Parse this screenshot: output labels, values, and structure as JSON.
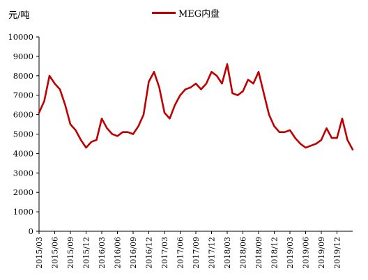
{
  "chart_data": {
    "type": "line",
    "title": "",
    "ylabel": "元/吨",
    "xlabel": "",
    "ylim": [
      0,
      10000
    ],
    "yticks": [
      0,
      1000,
      2000,
      3000,
      4000,
      5000,
      6000,
      7000,
      8000,
      9000,
      10000
    ],
    "xtick_labels": [
      "2015/03",
      "2015/06",
      "2015/09",
      "2015/12",
      "2016/03",
      "2016/06",
      "2016/09",
      "2016/12",
      "2017/03",
      "2017/06",
      "2017/09",
      "2017/12",
      "2018/03",
      "2018/06",
      "2018/09",
      "2018/12",
      "2019/03",
      "2019/06",
      "2019/09",
      "2019/12"
    ],
    "grid": false,
    "legend_position": "top-center",
    "series": [
      {
        "name": "MEG内盘",
        "color": "#c00000",
        "x": [
          "2015/03",
          "2015/04",
          "2015/05",
          "2015/06",
          "2015/07",
          "2015/08",
          "2015/09",
          "2015/10",
          "2015/11",
          "2015/12",
          "2016/01",
          "2016/02",
          "2016/03",
          "2016/04",
          "2016/05",
          "2016/06",
          "2016/07",
          "2016/08",
          "2016/09",
          "2016/10",
          "2016/11",
          "2016/12",
          "2017/01",
          "2017/02",
          "2017/03",
          "2017/04",
          "2017/05",
          "2017/06",
          "2017/07",
          "2017/08",
          "2017/09",
          "2017/10",
          "2017/11",
          "2017/12",
          "2018/01",
          "2018/02",
          "2018/03",
          "2018/04",
          "2018/05",
          "2018/06",
          "2018/07",
          "2018/08",
          "2018/09",
          "2018/10",
          "2018/11",
          "2018/12",
          "2019/01",
          "2019/02",
          "2019/03",
          "2019/04",
          "2019/05",
          "2019/06",
          "2019/07",
          "2019/08",
          "2019/09",
          "2019/10",
          "2019/11",
          "2019/12",
          "2020/01",
          "2020/02",
          "2020/03"
        ],
        "values": [
          6100,
          6700,
          8000,
          7600,
          7300,
          6500,
          5500,
          5200,
          4700,
          4300,
          4600,
          4700,
          5800,
          5300,
          5000,
          4900,
          5100,
          5100,
          5000,
          5400,
          6000,
          7700,
          8200,
          7400,
          6100,
          5800,
          6500,
          7000,
          7300,
          7400,
          7600,
          7300,
          7600,
          8200,
          8000,
          7600,
          8600,
          7100,
          7000,
          7200,
          7800,
          7600,
          8200,
          7100,
          6000,
          5400,
          5100,
          5100,
          5200,
          4800,
          4500,
          4300,
          4400,
          4500,
          4700,
          5300,
          4800,
          4800,
          5800,
          4700,
          4200
        ]
      }
    ]
  }
}
